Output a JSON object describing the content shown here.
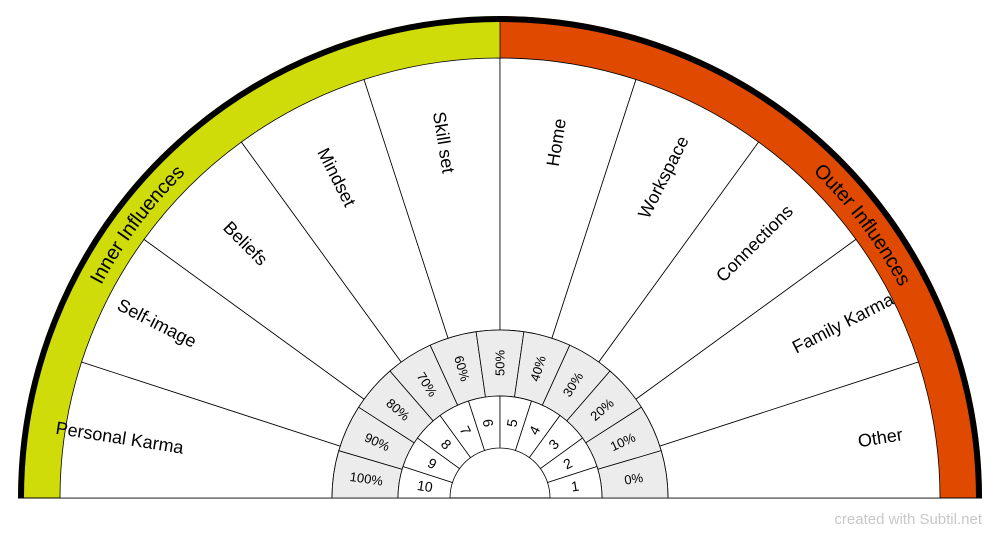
{
  "inner_label": "Inner Influences",
  "outer_label": "Outer Influences",
  "colors": {
    "inner_band": "#cfdc0a",
    "outer_band": "#e04a00",
    "rim": "#000000",
    "ring_fill": "#ececec",
    "line": "#000000"
  },
  "segments": [
    "Personal Karma",
    "Self-image",
    "Beliefs",
    "Mindset",
    "Skill set",
    "Home",
    "Workspace",
    "Connections",
    "Family Karma",
    "Other"
  ],
  "percentages": [
    "100%",
    "90%",
    "80%",
    "70%",
    "60%",
    "50%",
    "40%",
    "30%",
    "20%",
    "10%",
    "0%"
  ],
  "numbers": [
    "10",
    "9",
    "8",
    "7",
    "6",
    "5",
    "4",
    "3",
    "2",
    "1"
  ],
  "credit": "created with Subtil.net"
}
